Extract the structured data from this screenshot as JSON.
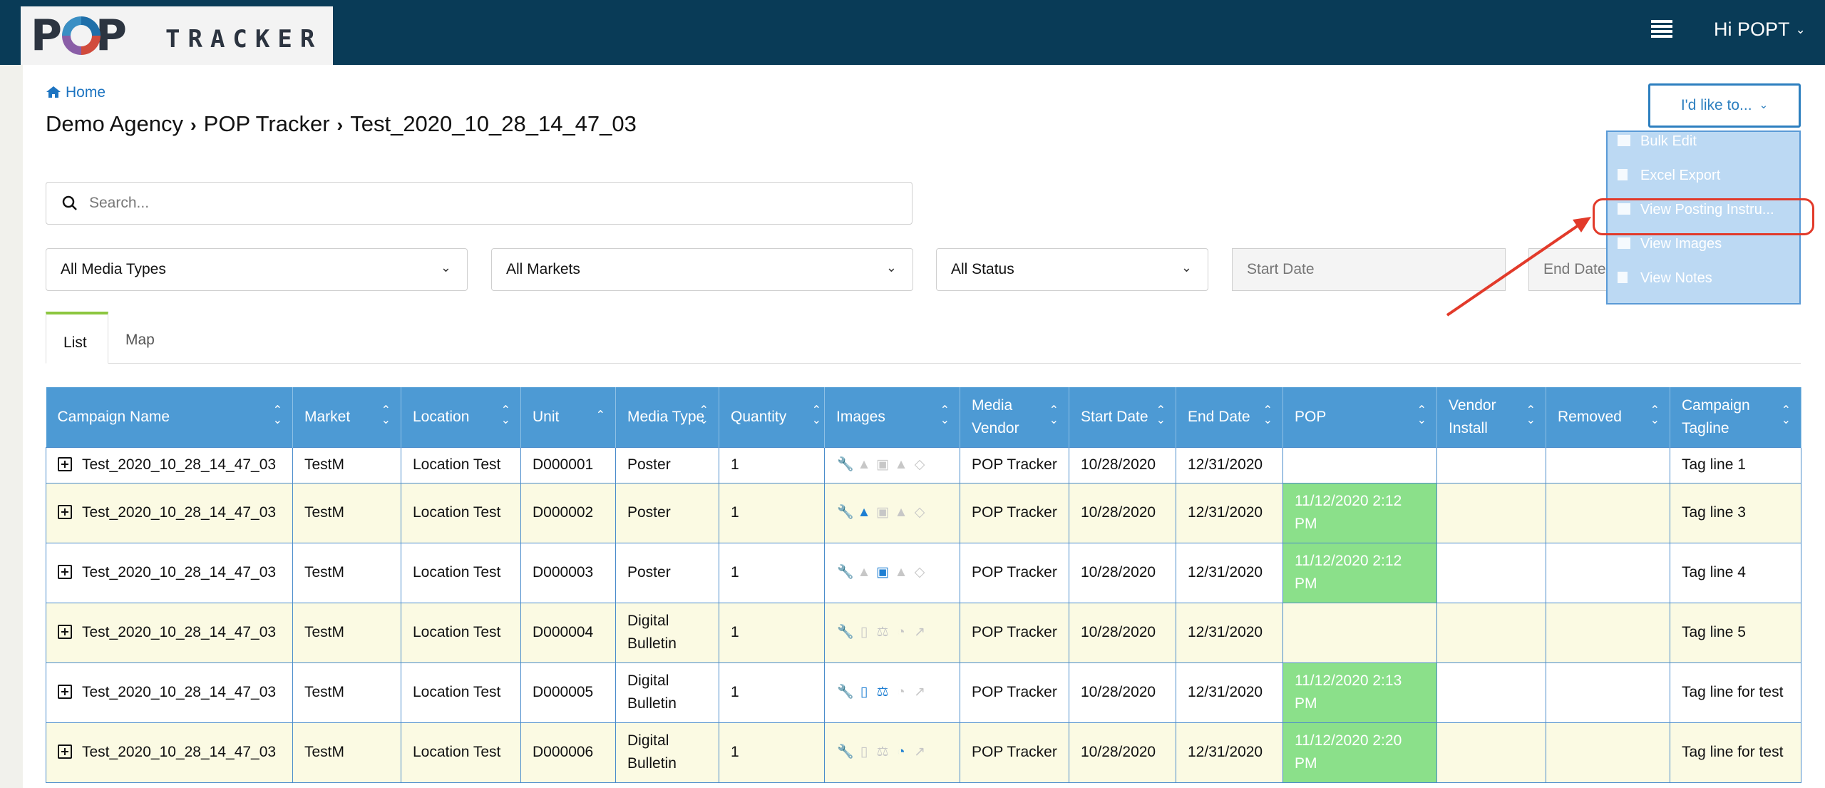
{
  "header": {
    "logo_pop": "POP",
    "logo_tracker": "TRACKER",
    "greeting": "Hi POPT",
    "menu_icon": "hamburger-icon"
  },
  "breadcrumb": {
    "home": "Home",
    "items": [
      "Demo Agency",
      "POP Tracker",
      "Test_2020_10_28_14_47_03"
    ]
  },
  "search": {
    "placeholder": "Search..."
  },
  "filters": {
    "media_types": "All Media Types",
    "markets": "All Markets",
    "status": "All Status",
    "start_date_placeholder": "Start Date",
    "end_date_placeholder": "End Date"
  },
  "tabs": [
    "List",
    "Map"
  ],
  "actions": {
    "button_label": "I'd like to...",
    "menu": [
      {
        "label": "Bulk Edit",
        "icon": "list-icon"
      },
      {
        "label": "Excel Export",
        "icon": "excel-icon"
      },
      {
        "label": "View Posting Instru...",
        "icon": "image-icon"
      },
      {
        "label": "View Images",
        "icon": "image-icon"
      },
      {
        "label": "View Notes",
        "icon": "file-icon"
      }
    ]
  },
  "table": {
    "columns": [
      "Campaign Name",
      "Market",
      "Location",
      "Unit",
      "Media Type",
      "Quantity",
      "Images",
      "Media Vendor",
      "Start Date",
      "End Date",
      "POP",
      "Vendor Install",
      "Removed",
      "Campaign Tagline"
    ],
    "rows": [
      {
        "campaign": "Test_2020_10_28_14_47_03",
        "market": "TestM",
        "location": "Location Test",
        "unit": "D000001",
        "media_type": "Poster",
        "quantity": "1",
        "vendor": "POP Tracker",
        "start": "10/28/2020",
        "end": "12/31/2020",
        "pop": "",
        "install": "",
        "removed": "",
        "tagline": "Tag line 1"
      },
      {
        "campaign": "Test_2020_10_28_14_47_03",
        "market": "TestM",
        "location": "Location Test",
        "unit": "D000002",
        "media_type": "Poster",
        "quantity": "1",
        "vendor": "POP Tracker",
        "start": "10/28/2020",
        "end": "12/31/2020",
        "pop": "11/12/2020 2:12 PM",
        "install": "",
        "removed": "",
        "tagline": "Tag line 3"
      },
      {
        "campaign": "Test_2020_10_28_14_47_03",
        "market": "TestM",
        "location": "Location Test",
        "unit": "D000003",
        "media_type": "Poster",
        "quantity": "1",
        "vendor": "POP Tracker",
        "start": "10/28/2020",
        "end": "12/31/2020",
        "pop": "11/12/2020 2:12 PM",
        "install": "",
        "removed": "",
        "tagline": "Tag line 4"
      },
      {
        "campaign": "Test_2020_10_28_14_47_03",
        "market": "TestM",
        "location": "Location Test",
        "unit": "D000004",
        "media_type": "Digital Bulletin",
        "quantity": "1",
        "vendor": "POP Tracker",
        "start": "10/28/2020",
        "end": "12/31/2020",
        "pop": "",
        "install": "",
        "removed": "",
        "tagline": "Tag line 5"
      },
      {
        "campaign": "Test_2020_10_28_14_47_03",
        "market": "TestM",
        "location": "Location Test",
        "unit": "D000005",
        "media_type": "Digital Bulletin",
        "quantity": "1",
        "vendor": "POP Tracker",
        "start": "10/28/2020",
        "end": "12/31/2020",
        "pop": "11/12/2020 2:13 PM",
        "install": "",
        "removed": "",
        "tagline": "Tag line for test"
      },
      {
        "campaign": "Test_2020_10_28_14_47_03",
        "market": "TestM",
        "location": "Location Test",
        "unit": "D000006",
        "media_type": "Digital Bulletin",
        "quantity": "1",
        "vendor": "POP Tracker",
        "start": "10/28/2020",
        "end": "12/31/2020",
        "pop": "11/12/2020 2:20 PM",
        "install": "",
        "removed": "",
        "tagline": "Tag line for test"
      }
    ]
  },
  "colors": {
    "topbar": "#093b57",
    "table_header": "#4d9ad4",
    "pop_green": "#8be08a",
    "row_alt": "#fbfae3",
    "highlight": "#e23a2a"
  }
}
